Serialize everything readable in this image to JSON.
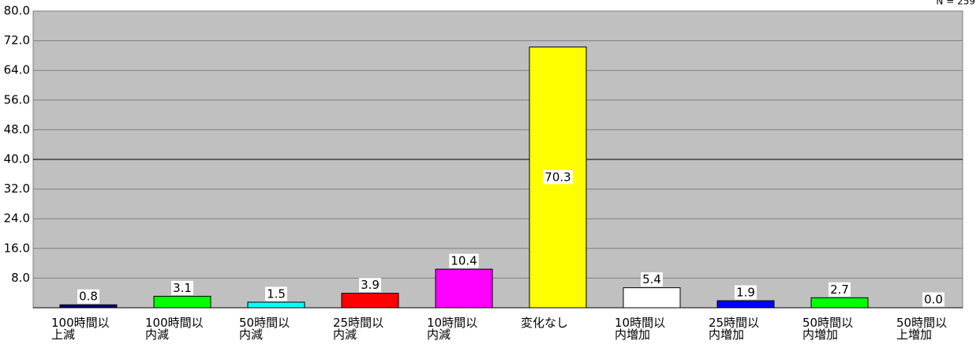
{
  "chart_data": {
    "type": "bar",
    "note": "N = 259",
    "categories": [
      "100時間以上減",
      "100時間以内減",
      "50時間以内減",
      "25時間以内減",
      "10時間以内減",
      "変化なし",
      "10時間以内増加",
      "25時間以内増加",
      "50時間以内増加",
      "50時間以上増加"
    ],
    "values": [
      0.8,
      3.1,
      1.5,
      3.9,
      10.4,
      70.3,
      5.4,
      1.9,
      2.7,
      0
    ],
    "value_labels": [
      "0.8",
      "3.1",
      "1.5",
      "3.9",
      "10.4",
      "70.3",
      "5.4",
      "1.9",
      "2.7",
      "0.0"
    ],
    "colors": [
      "#000080",
      "#00ff00",
      "#00ffff",
      "#ff0000",
      "#ff00ff",
      "#ffff00",
      "#ffffff",
      "#0000ff",
      "#00ff00",
      "#00ffff"
    ],
    "ylim": [
      0,
      80
    ],
    "yticks": [
      {
        "value": 8,
        "label": "8.0"
      },
      {
        "value": 16,
        "label": "16.0"
      },
      {
        "value": 24,
        "label": "24.0"
      },
      {
        "value": 32,
        "label": "32.0"
      },
      {
        "value": 40,
        "label": "40.0"
      },
      {
        "value": 48,
        "label": "48.0"
      },
      {
        "value": 56,
        "label": "56.0"
      },
      {
        "value": 64,
        "label": "64.0"
      },
      {
        "value": 72,
        "label": "72.0"
      },
      {
        "value": 80,
        "label": "80.0"
      }
    ],
    "grid": true
  }
}
